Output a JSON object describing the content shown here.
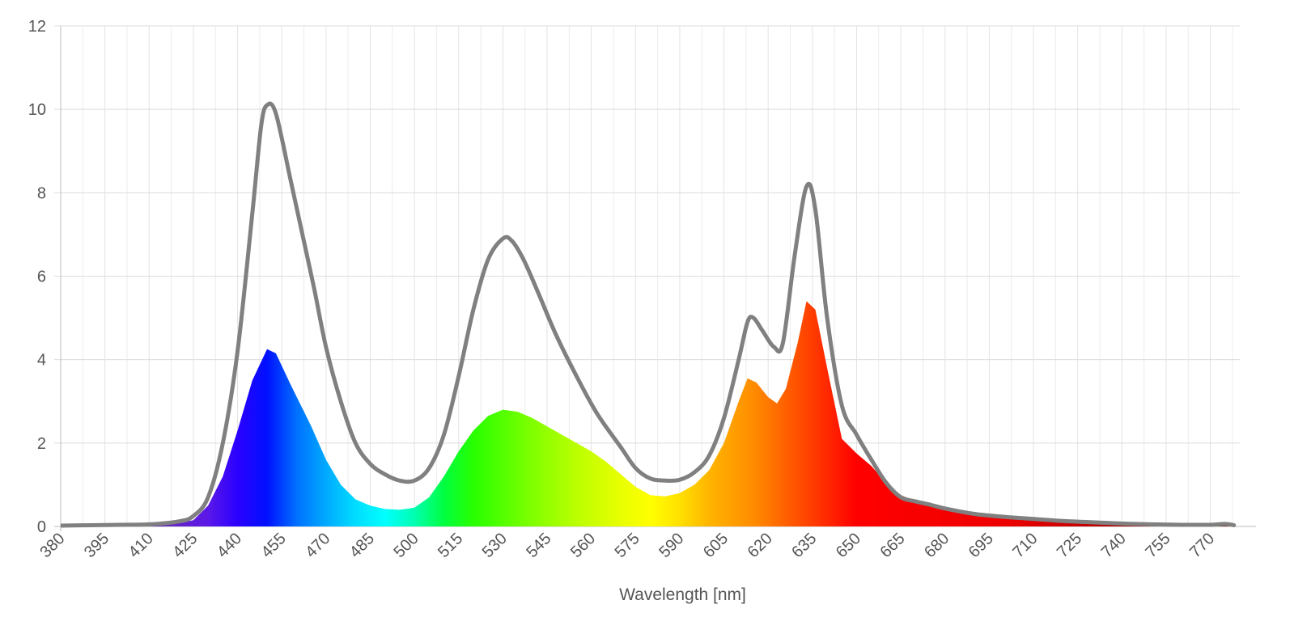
{
  "chart_data": {
    "type": "area",
    "title": "",
    "xlabel": "Wavelength [nm]",
    "ylabel": "",
    "xlim": [
      380,
      780
    ],
    "ylim": [
      0,
      12
    ],
    "grid": true,
    "legend": "none",
    "x_ticks": [
      380,
      395,
      410,
      425,
      440,
      455,
      470,
      485,
      500,
      515,
      530,
      545,
      560,
      575,
      590,
      605,
      620,
      635,
      650,
      665,
      680,
      695,
      710,
      725,
      740,
      755,
      770
    ],
    "y_ticks": [
      0,
      2,
      4,
      6,
      8,
      10,
      12
    ],
    "series": [
      {
        "style": "spectral-area",
        "points": [
          [
            380,
            0.02
          ],
          [
            390,
            0.03
          ],
          [
            400,
            0.03
          ],
          [
            410,
            0.04
          ],
          [
            420,
            0.08
          ],
          [
            425,
            0.15
          ],
          [
            430,
            0.5
          ],
          [
            435,
            1.2
          ],
          [
            440,
            2.3
          ],
          [
            445,
            3.5
          ],
          [
            450,
            4.25
          ],
          [
            453,
            4.15
          ],
          [
            458,
            3.4
          ],
          [
            465,
            2.4
          ],
          [
            470,
            1.6
          ],
          [
            475,
            1.0
          ],
          [
            480,
            0.65
          ],
          [
            485,
            0.5
          ],
          [
            490,
            0.42
          ],
          [
            495,
            0.4
          ],
          [
            500,
            0.45
          ],
          [
            505,
            0.7
          ],
          [
            510,
            1.2
          ],
          [
            515,
            1.8
          ],
          [
            520,
            2.3
          ],
          [
            525,
            2.65
          ],
          [
            530,
            2.8
          ],
          [
            535,
            2.75
          ],
          [
            540,
            2.6
          ],
          [
            545,
            2.4
          ],
          [
            550,
            2.2
          ],
          [
            555,
            2.0
          ],
          [
            560,
            1.8
          ],
          [
            565,
            1.55
          ],
          [
            570,
            1.25
          ],
          [
            575,
            0.95
          ],
          [
            580,
            0.75
          ],
          [
            585,
            0.72
          ],
          [
            590,
            0.8
          ],
          [
            595,
            1.0
          ],
          [
            600,
            1.35
          ],
          [
            605,
            2.0
          ],
          [
            610,
            3.0
          ],
          [
            613,
            3.55
          ],
          [
            616,
            3.45
          ],
          [
            620,
            3.1
          ],
          [
            623,
            2.95
          ],
          [
            626,
            3.3
          ],
          [
            630,
            4.4
          ],
          [
            633,
            5.4
          ],
          [
            636,
            5.2
          ],
          [
            640,
            3.8
          ],
          [
            645,
            2.1
          ],
          [
            650,
            1.75
          ],
          [
            655,
            1.45
          ],
          [
            660,
            1.05
          ],
          [
            665,
            0.75
          ],
          [
            670,
            0.6
          ],
          [
            675,
            0.5
          ],
          [
            680,
            0.42
          ],
          [
            690,
            0.3
          ],
          [
            700,
            0.23
          ],
          [
            710,
            0.18
          ],
          [
            720,
            0.13
          ],
          [
            730,
            0.1
          ],
          [
            740,
            0.07
          ],
          [
            750,
            0.05
          ],
          [
            760,
            0.04
          ],
          [
            770,
            0.04
          ],
          [
            775,
            0.06
          ],
          [
            778,
            0.03
          ]
        ]
      },
      {
        "style": "gray-line",
        "color": "#808080",
        "points": [
          [
            380,
            0.02
          ],
          [
            390,
            0.03
          ],
          [
            400,
            0.04
          ],
          [
            410,
            0.05
          ],
          [
            420,
            0.12
          ],
          [
            425,
            0.25
          ],
          [
            430,
            0.7
          ],
          [
            435,
            2.0
          ],
          [
            440,
            4.2
          ],
          [
            445,
            7.5
          ],
          [
            448,
            9.6
          ],
          [
            450,
            10.1
          ],
          [
            453,
            9.9
          ],
          [
            458,
            8.3
          ],
          [
            462,
            7.0
          ],
          [
            466,
            5.7
          ],
          [
            470,
            4.3
          ],
          [
            475,
            3.0
          ],
          [
            480,
            2.0
          ],
          [
            485,
            1.5
          ],
          [
            490,
            1.25
          ],
          [
            495,
            1.1
          ],
          [
            500,
            1.1
          ],
          [
            505,
            1.4
          ],
          [
            510,
            2.2
          ],
          [
            515,
            3.6
          ],
          [
            520,
            5.2
          ],
          [
            525,
            6.4
          ],
          [
            530,
            6.9
          ],
          [
            533,
            6.85
          ],
          [
            537,
            6.4
          ],
          [
            542,
            5.6
          ],
          [
            548,
            4.6
          ],
          [
            555,
            3.6
          ],
          [
            562,
            2.7
          ],
          [
            570,
            1.9
          ],
          [
            575,
            1.4
          ],
          [
            580,
            1.15
          ],
          [
            585,
            1.1
          ],
          [
            590,
            1.12
          ],
          [
            595,
            1.3
          ],
          [
            600,
            1.7
          ],
          [
            605,
            2.6
          ],
          [
            610,
            4.0
          ],
          [
            613,
            4.9
          ],
          [
            615,
            5.0
          ],
          [
            618,
            4.7
          ],
          [
            622,
            4.3
          ],
          [
            625,
            4.4
          ],
          [
            629,
            6.5
          ],
          [
            633,
            8.15
          ],
          [
            636,
            7.6
          ],
          [
            640,
            5.0
          ],
          [
            645,
            2.9
          ],
          [
            650,
            2.2
          ],
          [
            655,
            1.6
          ],
          [
            660,
            1.05
          ],
          [
            665,
            0.7
          ],
          [
            670,
            0.6
          ],
          [
            675,
            0.52
          ],
          [
            680,
            0.43
          ],
          [
            690,
            0.3
          ],
          [
            700,
            0.23
          ],
          [
            710,
            0.18
          ],
          [
            720,
            0.13
          ],
          [
            730,
            0.1
          ],
          [
            740,
            0.07
          ],
          [
            750,
            0.05
          ],
          [
            760,
            0.04
          ],
          [
            770,
            0.04
          ],
          [
            775,
            0.06
          ],
          [
            778,
            0.03
          ]
        ]
      }
    ]
  }
}
